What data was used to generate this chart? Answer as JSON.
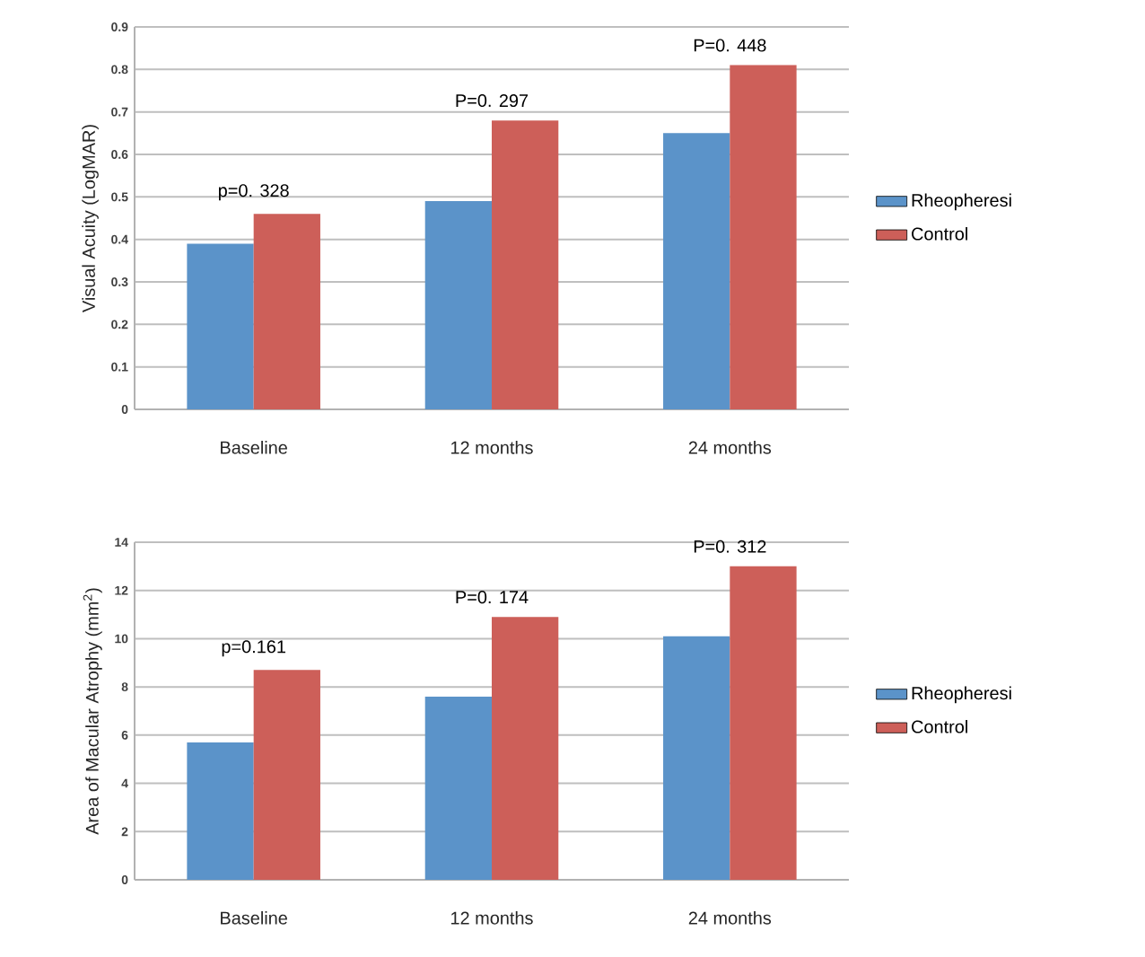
{
  "chart_data": [
    {
      "type": "bar",
      "ylabel": "Visual Acuity (LogMAR)",
      "categories": [
        "Baseline",
        "12 months",
        "24 months"
      ],
      "series": [
        {
          "name": "Rheopheresi",
          "color": "#5b93c9",
          "values": [
            0.39,
            0.49,
            0.65
          ]
        },
        {
          "name": "Control",
          "color": "#cd5f59",
          "values": [
            0.46,
            0.68,
            0.81
          ]
        }
      ],
      "ylim": [
        0,
        0.9
      ],
      "yticks": [
        0,
        0.1,
        0.2,
        0.3,
        0.4,
        0.5,
        0.6,
        0.7,
        0.8,
        0.9
      ],
      "grid": "y",
      "legend": "right",
      "annotations": [
        {
          "text": "p=0. 328",
          "x": "Baseline",
          "y": 0.46
        },
        {
          "text": "P=0. 297",
          "x": "12 months",
          "y": 0.68
        },
        {
          "text": "P=0. 448",
          "x": "24 months",
          "y": 0.81
        }
      ]
    },
    {
      "type": "bar",
      "ylabel": "Area of Macular Atrophy (mm$^{2}$)",
      "categories": [
        "Baseline",
        "12 months",
        "24 months"
      ],
      "series": [
        {
          "name": "Rheopheresi",
          "color": "#5b93c9",
          "values": [
            5.7,
            7.6,
            10.1
          ]
        },
        {
          "name": "Control",
          "color": "#cd5f59",
          "values": [
            8.7,
            10.9,
            13.0
          ]
        }
      ],
      "ylim": [
        0,
        14
      ],
      "yticks": [
        0,
        2,
        4,
        6,
        8,
        10,
        12,
        14
      ],
      "grid": "y",
      "legend": "right",
      "annotations": [
        {
          "text": "p=0.161",
          "x": "Baseline",
          "y": 8.7
        },
        {
          "text": "P=0. 174",
          "x": "12 months",
          "y": 10.9
        },
        {
          "text": "P=0. 312",
          "x": "24 months",
          "y": 13.0
        }
      ]
    }
  ]
}
